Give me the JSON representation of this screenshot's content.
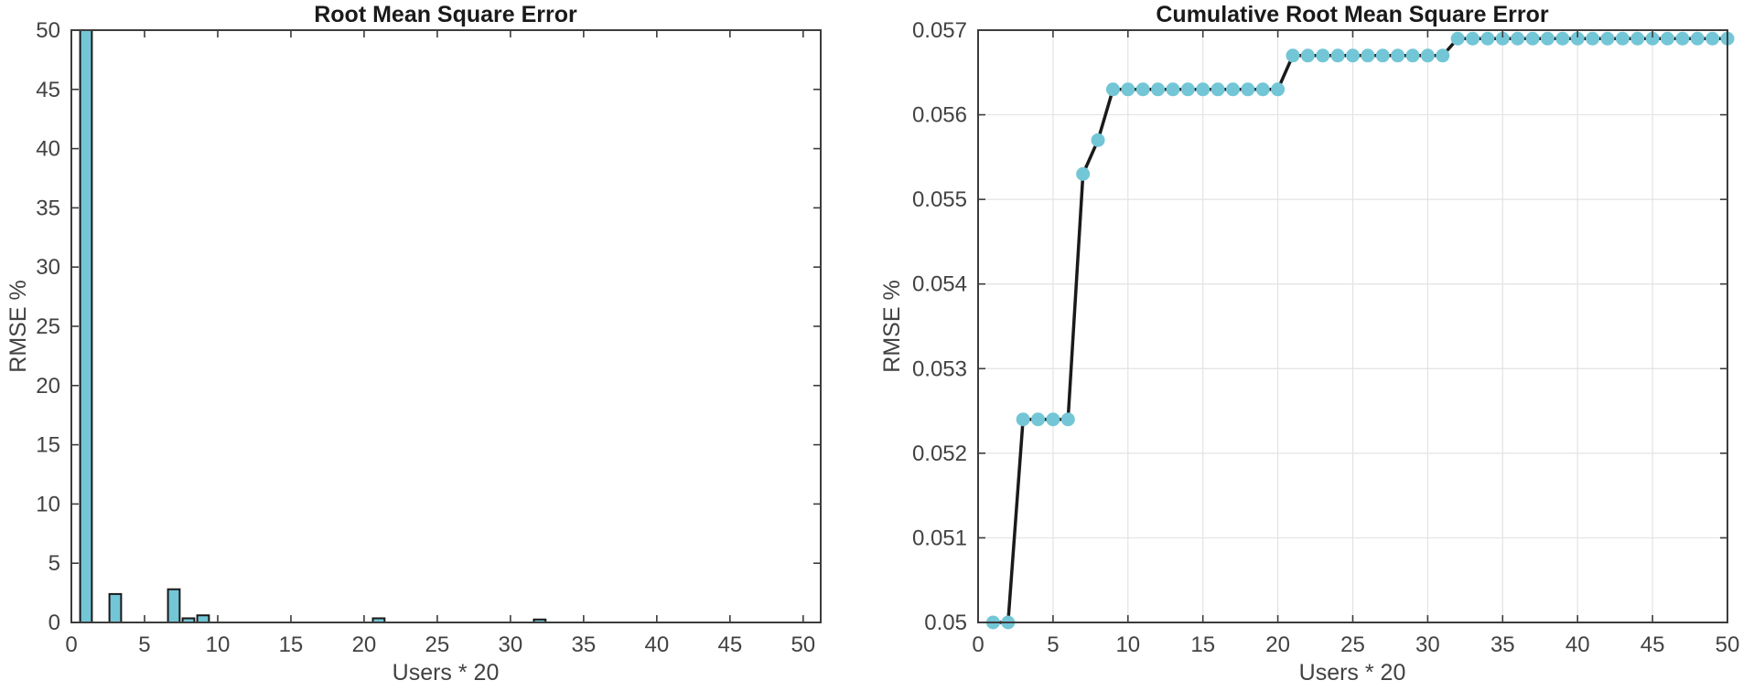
{
  "figure": {
    "background": "#FFFFFF"
  },
  "colors": {
    "series_fill": "#73C6D6",
    "series_edge": "#1A1A1A",
    "line": "#1A1A1A",
    "axis": "#3C3C3C",
    "tick_label": "#424242",
    "grid": "#E3E3E3",
    "title": "#1A1A1A"
  },
  "chart_data": [
    {
      "type": "bar",
      "title": "Root Mean Square Error",
      "xlabel": "Users * 20",
      "ylabel": "RMSE %",
      "xlim": [
        0,
        51.2
      ],
      "ylim": [
        0,
        50
      ],
      "xticks": [
        0,
        5,
        10,
        15,
        20,
        25,
        30,
        35,
        40,
        45,
        50
      ],
      "xtick_labels": [
        "0",
        "5",
        "10",
        "15",
        "20",
        "25",
        "30",
        "35",
        "40",
        "45",
        "50"
      ],
      "yticks": [
        0,
        5,
        10,
        15,
        20,
        25,
        30,
        35,
        40,
        45,
        50
      ],
      "ytick_labels": [
        "0",
        "5",
        "10",
        "15",
        "20",
        "25",
        "30",
        "35",
        "40",
        "45",
        "50"
      ],
      "grid": false,
      "bar_width": 0.8,
      "bars": [
        {
          "x": 1,
          "value": 50,
          "clipped_at_ylim": true
        },
        {
          "x": 3,
          "value": 2.4,
          "clipped_at_ylim": false
        },
        {
          "x": 7,
          "value": 2.8,
          "clipped_at_ylim": false
        },
        {
          "x": 8,
          "value": 0.35,
          "clipped_at_ylim": false
        },
        {
          "x": 9,
          "value": 0.6,
          "clipped_at_ylim": false
        },
        {
          "x": 21,
          "value": 0.35,
          "clipped_at_ylim": false
        },
        {
          "x": 32,
          "value": 0.25,
          "clipped_at_ylim": false
        }
      ]
    },
    {
      "type": "line",
      "title": "Cumulative Root Mean Square Error",
      "xlabel": "Users * 20",
      "ylabel": "RMSE %",
      "xlim": [
        0,
        50
      ],
      "ylim": [
        0.05,
        0.057
      ],
      "xticks": [
        0,
        5,
        10,
        15,
        20,
        25,
        30,
        35,
        40,
        45,
        50
      ],
      "xtick_labels": [
        "0",
        "5",
        "10",
        "15",
        "20",
        "25",
        "30",
        "35",
        "40",
        "45",
        "50"
      ],
      "yticks": [
        0.05,
        0.051,
        0.052,
        0.053,
        0.054,
        0.055,
        0.056,
        0.057
      ],
      "ytick_labels": [
        "0.05",
        "0.051",
        "0.052",
        "0.053",
        "0.054",
        "0.055",
        "0.056",
        "0.057"
      ],
      "grid": true,
      "marker": "circle",
      "x": [
        1,
        2,
        3,
        4,
        5,
        6,
        7,
        8,
        9,
        10,
        11,
        12,
        13,
        14,
        15,
        16,
        17,
        18,
        19,
        20,
        21,
        22,
        23,
        24,
        25,
        26,
        27,
        28,
        29,
        30,
        31,
        32,
        33,
        34,
        35,
        36,
        37,
        38,
        39,
        40,
        41,
        42,
        43,
        44,
        45,
        46,
        47,
        48,
        49,
        50
      ],
      "y": [
        0.05,
        0.05,
        0.0524,
        0.0524,
        0.0524,
        0.0524,
        0.0553,
        0.0557,
        0.0563,
        0.0563,
        0.0563,
        0.0563,
        0.0563,
        0.0563,
        0.0563,
        0.0563,
        0.0563,
        0.0563,
        0.0563,
        0.0563,
        0.0567,
        0.0567,
        0.0567,
        0.0567,
        0.0567,
        0.0567,
        0.0567,
        0.0567,
        0.0567,
        0.0567,
        0.0567,
        0.0569,
        0.0569,
        0.0569,
        0.0569,
        0.0569,
        0.0569,
        0.0569,
        0.0569,
        0.0569,
        0.0569,
        0.0569,
        0.0569,
        0.0569,
        0.0569,
        0.0569,
        0.0569,
        0.0569,
        0.0569,
        0.0569
      ]
    }
  ]
}
